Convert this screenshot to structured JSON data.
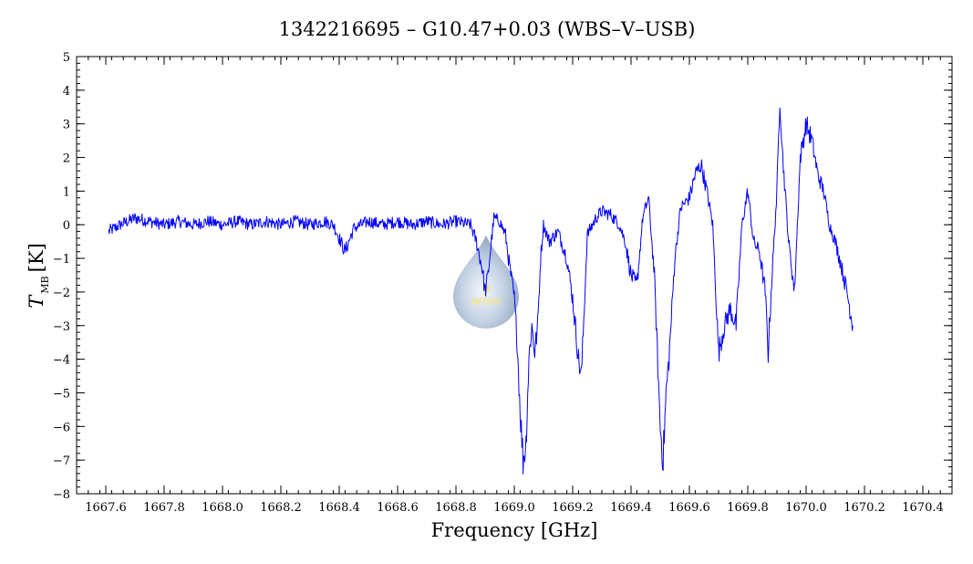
{
  "chart_data": {
    "type": "line",
    "title": "1342216695 – G10.47+0.03 (WBS–V–USB)",
    "xlabel": "Frequency [GHz]",
    "ylabel_main": "T",
    "ylabel_sub": "MB",
    "ylabel_unit": "[K]",
    "xlim": [
      1667.5,
      1670.5
    ],
    "ylim": [
      -8,
      5
    ],
    "x_ticks": [
      1667.6,
      1667.8,
      1668.0,
      1668.2,
      1668.4,
      1668.6,
      1668.8,
      1669.0,
      1669.2,
      1669.4,
      1669.6,
      1669.8,
      1670.0,
      1670.2,
      1670.4
    ],
    "x_tick_labels": [
      "1667.6",
      "1667.8",
      "1668.0",
      "1668.2",
      "1668.4",
      "1668.6",
      "1668.8",
      "1669.0",
      "1669.2",
      "1669.4",
      "1669.6",
      "1669.8",
      "1670.0",
      "1670.2",
      "1670.4"
    ],
    "y_ticks": [
      5,
      4,
      3,
      2,
      1,
      0,
      -1,
      -2,
      -3,
      -4,
      -5,
      -6,
      -7,
      -8
    ],
    "y_tick_labels": [
      "5",
      "4",
      "3",
      "2",
      "1",
      "0",
      "−1",
      "−2",
      "−3",
      "−4",
      "−5",
      "−6",
      "−7",
      "−8"
    ],
    "grid": false,
    "series_color": "#0000ff",
    "series": [
      {
        "x": [
          1667.61,
          1667.65,
          1667.7,
          1667.75,
          1667.8,
          1667.85,
          1667.9,
          1667.95,
          1668.0,
          1668.05,
          1668.1,
          1668.15,
          1668.2,
          1668.25,
          1668.3,
          1668.35,
          1668.38,
          1668.4,
          1668.42,
          1668.45,
          1668.5,
          1668.55,
          1668.6,
          1668.65,
          1668.7,
          1668.75,
          1668.8,
          1668.85,
          1668.87,
          1668.89,
          1668.9,
          1668.91,
          1668.92,
          1668.93,
          1668.95,
          1668.97,
          1668.98,
          1668.99,
          1669.0,
          1669.01,
          1669.02,
          1669.03,
          1669.04,
          1669.05,
          1669.06,
          1669.07,
          1669.08,
          1669.09,
          1669.1,
          1669.12,
          1669.15,
          1669.18,
          1669.2,
          1669.22,
          1669.23,
          1669.25,
          1669.28,
          1669.3,
          1669.33,
          1669.36,
          1669.38,
          1669.4,
          1669.42,
          1669.44,
          1669.46,
          1669.48,
          1669.5,
          1669.51,
          1669.52,
          1669.53,
          1669.55,
          1669.57,
          1669.6,
          1669.62,
          1669.64,
          1669.66,
          1669.68,
          1669.7,
          1669.72,
          1669.74,
          1669.76,
          1669.78,
          1669.8,
          1669.82,
          1669.84,
          1669.86,
          1669.87,
          1669.88,
          1669.9,
          1669.91,
          1669.92,
          1669.94,
          1669.96,
          1669.98,
          1670.0,
          1670.02,
          1670.04,
          1670.06,
          1670.08,
          1670.1,
          1670.12,
          1670.14,
          1670.16
        ],
        "y": [
          -0.2,
          0.0,
          0.2,
          0.1,
          0.0,
          0.1,
          0.0,
          0.1,
          0.0,
          0.1,
          0.0,
          0.1,
          0.0,
          0.1,
          0.0,
          0.1,
          0.0,
          -0.4,
          -0.8,
          -0.1,
          0.1,
          0.0,
          0.1,
          0.0,
          0.1,
          0.0,
          0.1,
          0.0,
          -0.5,
          -1.3,
          -2.0,
          -1.5,
          -0.6,
          0.2,
          0.1,
          -0.3,
          -1.0,
          -1.6,
          -2.2,
          -3.5,
          -5.5,
          -7.0,
          -6.5,
          -4.0,
          -3.0,
          -3.8,
          -3.0,
          -1.0,
          0.0,
          -0.5,
          -0.2,
          -1.0,
          -2.2,
          -4.0,
          -4.5,
          -0.3,
          0.2,
          0.4,
          0.3,
          0.0,
          -0.5,
          -1.5,
          -1.8,
          0.2,
          0.8,
          -1.5,
          -6.0,
          -7.0,
          -5.0,
          -4.0,
          -1.0,
          0.5,
          0.8,
          1.5,
          1.8,
          1.0,
          0.0,
          -3.8,
          -3.0,
          -2.5,
          -3.0,
          0.0,
          1.0,
          -0.5,
          -0.8,
          -2.0,
          -3.8,
          -2.0,
          1.0,
          3.8,
          2.0,
          -0.5,
          -2.0,
          2.0,
          3.0,
          2.5,
          1.5,
          1.0,
          0.0,
          -0.5,
          -1.2,
          -2.0,
          -3.0
        ]
      }
    ]
  },
  "logo": {
    "text": "WISH"
  }
}
